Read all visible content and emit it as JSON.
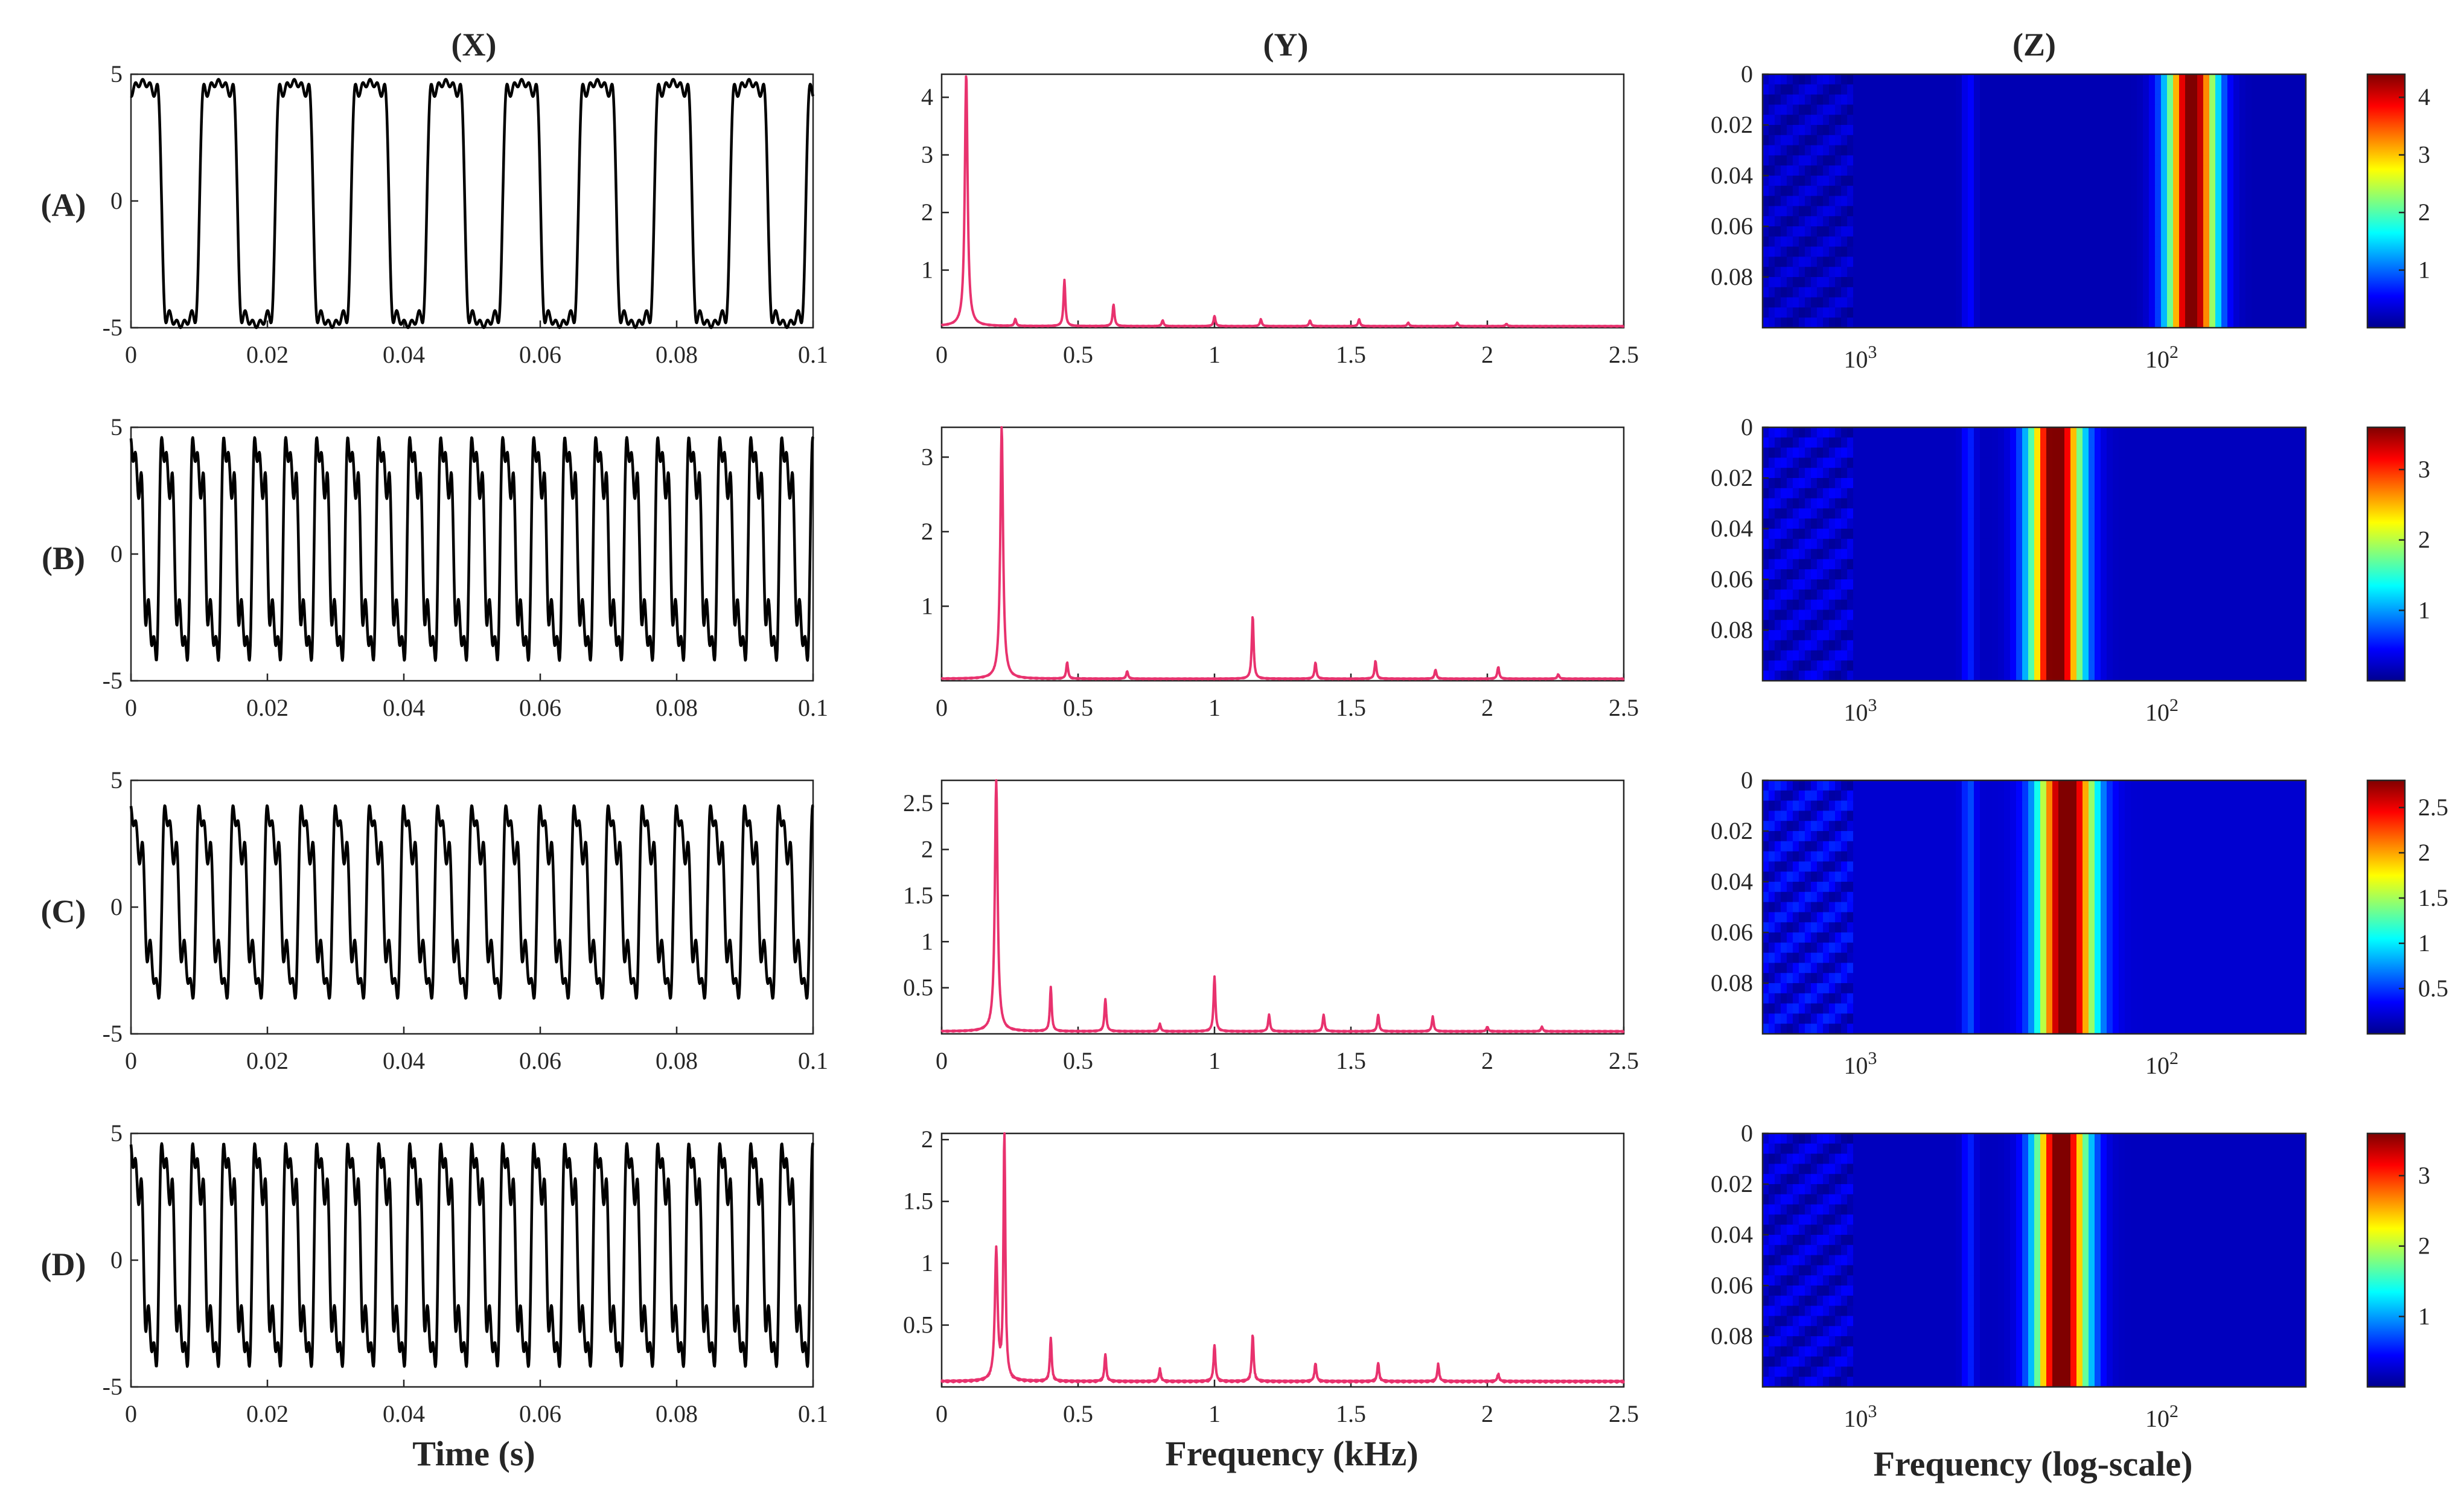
{
  "column_labels": [
    "(X)",
    "(Y)",
    "(Z)"
  ],
  "row_labels": [
    "(A)",
    "(B)",
    "(C)",
    "(D)"
  ],
  "xlabels": {
    "time": "Time (s)",
    "frequency": "Frequency (kHz)",
    "logfreq": "Frequency (log-scale)"
  },
  "colors": {
    "waveform": "#000000",
    "spectrum": "#e8326e",
    "frame": "#262626",
    "heatmap_background": "#00008f"
  },
  "chart_data": [
    {
      "panel": "A-X",
      "type": "line",
      "xlabel": "",
      "ylabel": "",
      "xlim": [
        0,
        0.1
      ],
      "ylim": [
        -5,
        5
      ],
      "xticks": [
        0,
        0.02,
        0.04,
        0.06,
        0.08,
        0.1
      ],
      "xtick_labels": [
        "0",
        "0.02",
        "0.04",
        "0.06",
        "0.08",
        "0.1"
      ],
      "yticks": [
        -5,
        0,
        5
      ],
      "ytick_labels": [
        "-5",
        "0",
        "5"
      ],
      "waveform": {
        "fundamental_hz": 90,
        "amplitude": [
          4.8,
          -5.0
        ],
        "harmonics": [
          [
            1,
            1.0
          ],
          [
            3,
            0.28
          ],
          [
            5,
            0.16
          ],
          [
            7,
            0.1
          ],
          [
            9,
            0.06
          ]
        ]
      }
    },
    {
      "panel": "A-Y",
      "type": "line",
      "xlabel": "",
      "ylabel": "",
      "xlim": [
        0,
        2.5
      ],
      "ylim": [
        0,
        4.4
      ],
      "xticks": [
        0,
        0.5,
        1,
        1.5,
        2,
        2.5
      ],
      "xtick_labels": [
        "0",
        "0.5",
        "1",
        "1.5",
        "2",
        "2.5"
      ],
      "yticks": [
        1,
        2,
        3,
        4
      ],
      "ytick_labels": [
        "1",
        "2",
        "3",
        "4"
      ],
      "peaks": [
        [
          0.09,
          4.4
        ],
        [
          0.27,
          0.12
        ],
        [
          0.45,
          0.8
        ],
        [
          0.63,
          0.38
        ],
        [
          0.81,
          0.1
        ],
        [
          1.0,
          0.18
        ],
        [
          1.17,
          0.12
        ],
        [
          1.35,
          0.1
        ],
        [
          1.53,
          0.12
        ],
        [
          1.71,
          0.06
        ],
        [
          1.89,
          0.06
        ],
        [
          2.07,
          0.04
        ]
      ],
      "baseline": 0.03
    },
    {
      "panel": "A-Z",
      "type": "heatmap",
      "xlabel": "",
      "ylabel": "",
      "xtick_labels": [
        "10^3",
        "10^2"
      ],
      "ylim": [
        0,
        0.1
      ],
      "yticks": [
        0,
        0.02,
        0.04,
        0.06,
        0.08
      ],
      "ytick_labels": [
        "0",
        "0.02",
        "0.04",
        "0.06",
        "0.08"
      ],
      "colorbar_ticks": [
        1,
        2,
        3,
        4
      ],
      "colorbar_tick_labels": [
        "1",
        "2",
        "3",
        "4"
      ],
      "colorbar_max": 4.4,
      "dominant_band_center": 0.79,
      "dominant_band_width": 0.065,
      "dominant_band_value": 4.4
    },
    {
      "panel": "B-X",
      "type": "line",
      "xlabel": "",
      "ylabel": "",
      "xlim": [
        0,
        0.1
      ],
      "ylim": [
        -5,
        5
      ],
      "xticks": [
        0,
        0.02,
        0.04,
        0.06,
        0.08,
        0.1
      ],
      "xtick_labels": [
        "0",
        "0.02",
        "0.04",
        "0.06",
        "0.08",
        "0.1"
      ],
      "yticks": [
        -5,
        0,
        5
      ],
      "ytick_labels": [
        "-5",
        "0",
        "5"
      ],
      "waveform": {
        "fundamental_hz": 220,
        "amplitude": [
          4.6,
          -4.2
        ],
        "harmonics": [
          [
            1,
            1.0
          ],
          [
            2,
            0.2
          ],
          [
            3,
            0.3
          ],
          [
            5,
            0.22
          ]
        ]
      }
    },
    {
      "panel": "B-Y",
      "type": "line",
      "xlabel": "",
      "ylabel": "",
      "xlim": [
        0,
        2.5
      ],
      "ylim": [
        0,
        3.4
      ],
      "xticks": [
        0,
        0.5,
        1,
        1.5,
        2,
        2.5
      ],
      "xtick_labels": [
        "0",
        "0.5",
        "1",
        "1.5",
        "2",
        "2.5"
      ],
      "yticks": [
        1,
        2,
        3
      ],
      "ytick_labels": [
        "1",
        "2",
        "3"
      ],
      "peaks": [
        [
          0.22,
          3.4
        ],
        [
          0.46,
          0.22
        ],
        [
          0.68,
          0.1
        ],
        [
          1.14,
          0.85
        ],
        [
          1.37,
          0.22
        ],
        [
          1.59,
          0.24
        ],
        [
          1.81,
          0.12
        ],
        [
          2.04,
          0.16
        ],
        [
          2.26,
          0.06
        ]
      ],
      "baseline": 0.03
    },
    {
      "panel": "B-Z",
      "type": "heatmap",
      "xlabel": "",
      "ylabel": "",
      "xtick_labels": [
        "10^3",
        "10^2"
      ],
      "ylim": [
        0,
        0.1
      ],
      "yticks": [
        0,
        0.02,
        0.04,
        0.06,
        0.08
      ],
      "ytick_labels": [
        "0",
        "0.02",
        "0.04",
        "0.06",
        "0.08"
      ],
      "colorbar_ticks": [
        1,
        2,
        3
      ],
      "colorbar_tick_labels": [
        "1",
        "2",
        "3"
      ],
      "colorbar_max": 3.6,
      "dominant_band_center": 0.54,
      "dominant_band_width": 0.07,
      "dominant_band_value": 3.6
    },
    {
      "panel": "C-X",
      "type": "line",
      "xlabel": "",
      "ylabel": "",
      "xlim": [
        0,
        0.1
      ],
      "ylim": [
        -5,
        5
      ],
      "xticks": [
        0,
        0.02,
        0.04,
        0.06,
        0.08,
        0.1
      ],
      "xtick_labels": [
        "0",
        "0.02",
        "0.04",
        "0.06",
        "0.08",
        "0.1"
      ],
      "yticks": [
        -5,
        0,
        5
      ],
      "ytick_labels": [
        "-5",
        "0",
        "5"
      ],
      "waveform": {
        "fundamental_hz": 200,
        "amplitude": [
          4.0,
          -3.6
        ],
        "harmonics": [
          [
            1,
            1.0
          ],
          [
            2,
            0.25
          ],
          [
            3,
            0.3
          ],
          [
            5,
            0.22
          ]
        ]
      }
    },
    {
      "panel": "C-Y",
      "type": "line",
      "xlabel": "",
      "ylabel": "",
      "xlim": [
        0,
        2.5
      ],
      "ylim": [
        0,
        2.75
      ],
      "xticks": [
        0,
        0.5,
        1,
        1.5,
        2,
        2.5
      ],
      "xtick_labels": [
        "0",
        "0.5",
        "1",
        "1.5",
        "2",
        "2.5"
      ],
      "yticks": [
        0.5,
        1,
        1.5,
        2,
        2.5
      ],
      "ytick_labels": [
        "0.5",
        "1",
        "1.5",
        "2",
        "2.5"
      ],
      "peaks": [
        [
          0.2,
          2.75
        ],
        [
          0.4,
          0.48
        ],
        [
          0.6,
          0.35
        ],
        [
          0.8,
          0.08
        ],
        [
          1.0,
          0.6
        ],
        [
          1.2,
          0.18
        ],
        [
          1.4,
          0.18
        ],
        [
          1.6,
          0.18
        ],
        [
          1.8,
          0.16
        ],
        [
          2.0,
          0.05
        ],
        [
          2.2,
          0.05
        ]
      ],
      "baseline": 0.03
    },
    {
      "panel": "C-Z",
      "type": "heatmap",
      "xlabel": "",
      "ylabel": "",
      "xtick_labels": [
        "10^3",
        "10^2"
      ],
      "ylim": [
        0,
        0.1
      ],
      "yticks": [
        0,
        0.02,
        0.04,
        0.06,
        0.08
      ],
      "ytick_labels": [
        "0",
        "0.02",
        "0.04",
        "0.06",
        "0.08"
      ],
      "colorbar_ticks": [
        0.5,
        1,
        1.5,
        2,
        2.5
      ],
      "colorbar_tick_labels": [
        "0.5",
        "1",
        "1.5",
        "2",
        "2.5"
      ],
      "colorbar_max": 2.8,
      "dominant_band_center": 0.56,
      "dominant_band_width": 0.075,
      "dominant_band_value": 2.8
    },
    {
      "panel": "D-X",
      "type": "line",
      "xlabel": "",
      "ylabel": "",
      "xlim": [
        0,
        0.1
      ],
      "ylim": [
        -5,
        5
      ],
      "xticks": [
        0,
        0.02,
        0.04,
        0.06,
        0.08,
        0.1
      ],
      "xtick_labels": [
        "0",
        "0.02",
        "0.04",
        "0.06",
        "0.08",
        "0.1"
      ],
      "yticks": [
        -5,
        0,
        5
      ],
      "ytick_labels": [
        "-5",
        "0",
        "5"
      ],
      "waveform": {
        "fundamental_hz": 220,
        "amplitude": [
          4.6,
          -4.2
        ],
        "harmonics": [
          [
            1,
            1.0
          ],
          [
            2,
            0.2
          ],
          [
            3,
            0.3
          ],
          [
            5,
            0.22
          ]
        ]
      }
    },
    {
      "panel": "D-Y",
      "type": "line",
      "xlabel": "",
      "ylabel": "",
      "xlim": [
        0,
        2.5
      ],
      "ylim": [
        0,
        2.05
      ],
      "xticks": [
        0,
        0.5,
        1,
        1.5,
        2,
        2.5
      ],
      "xtick_labels": [
        "0",
        "0.5",
        "1",
        "1.5",
        "2",
        "2.5"
      ],
      "yticks": [
        0.5,
        1,
        1.5,
        2
      ],
      "ytick_labels": [
        "0.5",
        "1",
        "1.5",
        "2"
      ],
      "peaks": [
        [
          0.2,
          1.05
        ],
        [
          0.23,
          2.05
        ],
        [
          0.4,
          0.35
        ],
        [
          0.6,
          0.22
        ],
        [
          0.8,
          0.1
        ],
        [
          1.0,
          0.3
        ],
        [
          1.14,
          0.38
        ],
        [
          1.37,
          0.15
        ],
        [
          1.6,
          0.15
        ],
        [
          1.82,
          0.14
        ],
        [
          2.04,
          0.06
        ]
      ],
      "baseline": 0.05
    },
    {
      "panel": "D-Z",
      "type": "heatmap",
      "xlabel": "",
      "ylabel": "",
      "xtick_labels": [
        "10^3",
        "10^2"
      ],
      "ylim": [
        0,
        0.1
      ],
      "yticks": [
        0,
        0.02,
        0.04,
        0.06,
        0.08
      ],
      "ytick_labels": [
        "0",
        "0.02",
        "0.04",
        "0.06",
        "0.08"
      ],
      "colorbar_ticks": [
        1,
        2,
        3
      ],
      "colorbar_tick_labels": [
        "1",
        "2",
        "3"
      ],
      "colorbar_max": 3.6,
      "dominant_band_center": 0.55,
      "dominant_band_width": 0.07,
      "dominant_band_value": 3.6
    }
  ]
}
